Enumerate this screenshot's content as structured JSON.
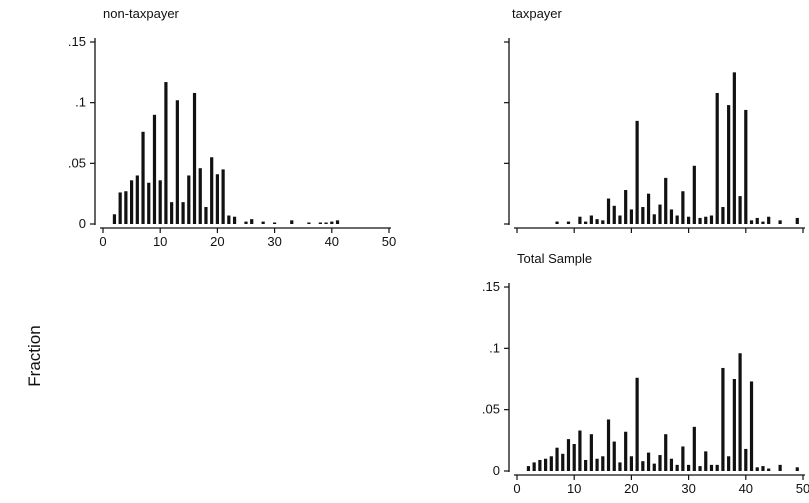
{
  "figure": {
    "ylabel": "Fraction"
  },
  "chart_data": [
    {
      "type": "bar",
      "title": "non-taxpayer",
      "xlabel": "",
      "ylabel": "Fraction",
      "xlim": [
        0,
        50
      ],
      "ylim": [
        0,
        0.15
      ],
      "xticks": [
        "0",
        "10",
        "20",
        "30",
        "40",
        "50"
      ],
      "yticks": [
        "0",
        ".05",
        ".1",
        ".15"
      ],
      "show_x_tick_labels": true,
      "show_y_tick_labels": true,
      "series": [
        {
          "x": [
            2,
            3,
            4,
            5,
            6,
            7,
            8,
            9,
            10,
            11,
            12,
            13,
            14,
            15,
            16,
            17,
            18,
            19,
            20,
            21,
            22,
            23,
            25,
            26,
            28,
            30,
            33,
            36,
            38,
            39,
            40,
            41
          ],
          "values": [
            0.008,
            0.026,
            0.027,
            0.036,
            0.04,
            0.076,
            0.034,
            0.09,
            0.036,
            0.117,
            0.018,
            0.102,
            0.018,
            0.04,
            0.108,
            0.046,
            0.014,
            0.055,
            0.041,
            0.045,
            0.007,
            0.006,
            0.002,
            0.004,
            0.002,
            0.001,
            0.003,
            0.001,
            0.001,
            0.001,
            0.002,
            0.003
          ]
        }
      ]
    },
    {
      "type": "bar",
      "title": "taxpayer",
      "xlabel": "",
      "ylabel": "Fraction",
      "xlim": [
        0,
        50
      ],
      "ylim": [
        0,
        0.15
      ],
      "xticks": [
        "0",
        "10",
        "20",
        "30",
        "40",
        "50"
      ],
      "yticks": [
        "0",
        ".05",
        ".1",
        ".15"
      ],
      "show_x_tick_labels": false,
      "show_y_tick_labels": false,
      "series": [
        {
          "x": [
            7,
            9,
            11,
            12,
            13,
            14,
            15,
            16,
            17,
            18,
            19,
            20,
            21,
            22,
            23,
            24,
            25,
            26,
            27,
            28,
            29,
            30,
            31,
            32,
            33,
            34,
            35,
            36,
            37,
            38,
            39,
            40,
            41,
            42,
            43,
            44,
            46,
            49
          ],
          "values": [
            0.002,
            0.002,
            0.006,
            0.002,
            0.007,
            0.004,
            0.003,
            0.021,
            0.015,
            0.007,
            0.028,
            0.012,
            0.085,
            0.014,
            0.025,
            0.008,
            0.016,
            0.038,
            0.012,
            0.007,
            0.027,
            0.006,
            0.048,
            0.005,
            0.006,
            0.007,
            0.108,
            0.014,
            0.098,
            0.125,
            0.023,
            0.094,
            0.003,
            0.005,
            0.002,
            0.006,
            0.003,
            0.005
          ]
        }
      ]
    },
    {
      "type": "bar",
      "title": "Total Sample",
      "xlabel": "",
      "ylabel": "Fraction",
      "xlim": [
        0,
        50
      ],
      "ylim": [
        0,
        0.15
      ],
      "xticks": [
        "0",
        "10",
        "20",
        "30",
        "40",
        "50"
      ],
      "yticks": [
        "0",
        ".05",
        ".1",
        ".15"
      ],
      "show_x_tick_labels": true,
      "show_y_tick_labels": true,
      "series": [
        {
          "x": [
            2,
            3,
            4,
            5,
            6,
            7,
            8,
            9,
            10,
            11,
            12,
            13,
            14,
            15,
            16,
            17,
            18,
            19,
            20,
            21,
            22,
            23,
            24,
            25,
            26,
            27,
            28,
            29,
            30,
            31,
            32,
            33,
            34,
            35,
            36,
            37,
            38,
            39,
            40,
            41,
            42,
            43,
            44,
            46,
            49
          ],
          "values": [
            0.004,
            0.007,
            0.009,
            0.01,
            0.012,
            0.019,
            0.014,
            0.026,
            0.022,
            0.033,
            0.009,
            0.03,
            0.01,
            0.012,
            0.042,
            0.024,
            0.007,
            0.032,
            0.012,
            0.076,
            0.008,
            0.015,
            0.006,
            0.013,
            0.03,
            0.01,
            0.005,
            0.02,
            0.005,
            0.036,
            0.004,
            0.016,
            0.005,
            0.005,
            0.084,
            0.012,
            0.075,
            0.096,
            0.018,
            0.073,
            0.003,
            0.004,
            0.002,
            0.005,
            0.003
          ]
        }
      ]
    }
  ]
}
